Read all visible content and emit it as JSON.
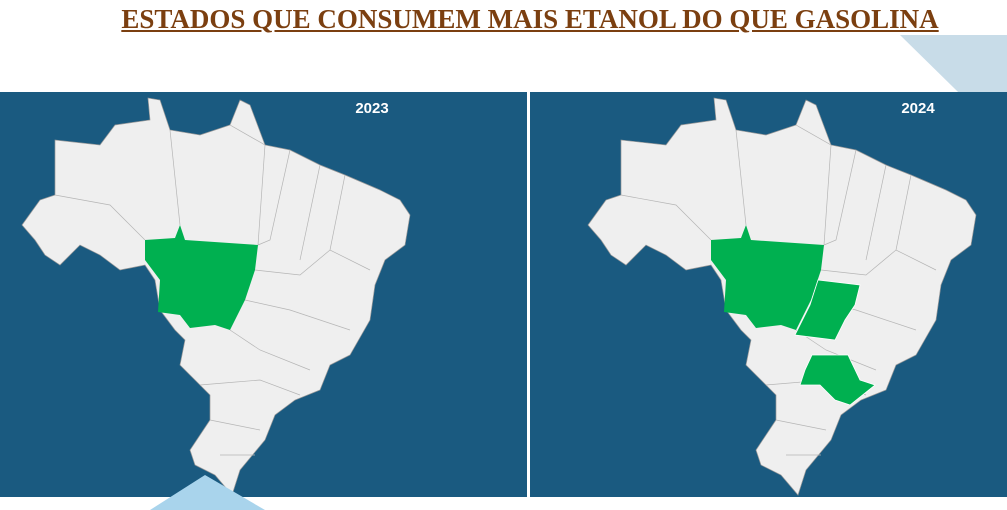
{
  "title": "ESTADOS QUE CONSUMEM MAIS ETANOL DO QUE GASOLINA",
  "maps": [
    {
      "label": "2023"
    },
    {
      "label": "2024"
    }
  ]
}
